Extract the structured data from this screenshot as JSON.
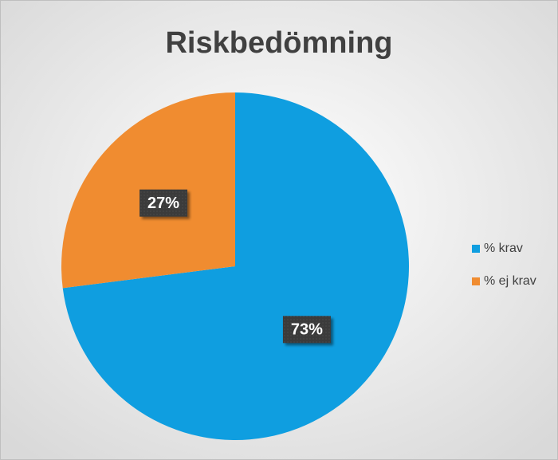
{
  "chart_data": {
    "type": "pie",
    "title": "Riskbedömning",
    "categories": [
      "% krav",
      "% ej krav"
    ],
    "values": [
      73,
      27
    ],
    "value_labels": [
      "73%",
      "27%"
    ],
    "colors": [
      "#0f9ee0",
      "#f08c30"
    ],
    "legend": "right"
  }
}
